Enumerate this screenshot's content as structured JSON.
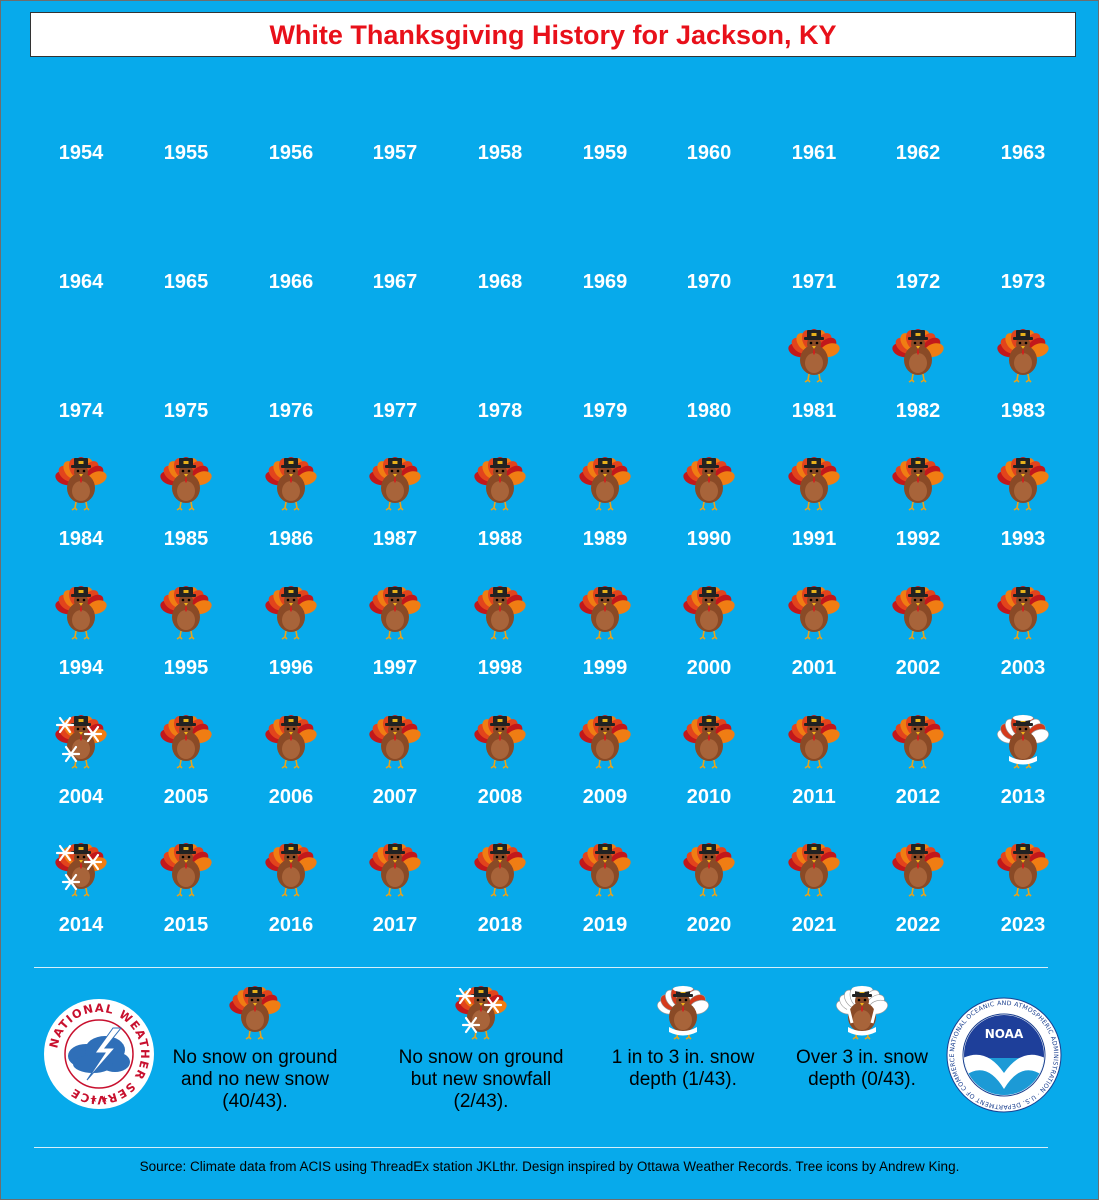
{
  "title": "White Thanksgiving History for Jackson, KY",
  "years": [
    [
      "1954",
      "1955",
      "1956",
      "1957",
      "1958",
      "1959",
      "1960",
      "1961",
      "1962",
      "1963"
    ],
    [
      "1964",
      "1965",
      "1966",
      "1967",
      "1968",
      "1969",
      "1970",
      "1971",
      "1972",
      "1973"
    ],
    [
      "1974",
      "1975",
      "1976",
      "1977",
      "1978",
      "1979",
      "1980",
      "1981",
      "1982",
      "1983"
    ],
    [
      "1984",
      "1985",
      "1986",
      "1987",
      "1988",
      "1989",
      "1990",
      "1991",
      "1992",
      "1993"
    ],
    [
      "1994",
      "1995",
      "1996",
      "1997",
      "1998",
      "1999",
      "2000",
      "2001",
      "2002",
      "2003"
    ],
    [
      "2004",
      "2005",
      "2006",
      "2007",
      "2008",
      "2009",
      "2010",
      "2011",
      "2012",
      "2013"
    ],
    [
      "2014",
      "2015",
      "2016",
      "2017",
      "2018",
      "2019",
      "2020",
      "2021",
      "2022",
      "2023"
    ]
  ],
  "status": {
    "1981": "none",
    "1982": "none",
    "1983": "none",
    "1984": "none",
    "1985": "none",
    "1986": "none",
    "1987": "none",
    "1988": "none",
    "1989": "none",
    "1990": "none",
    "1991": "none",
    "1992": "none",
    "1993": "none",
    "1994": "none",
    "1995": "none",
    "1996": "none",
    "1997": "none",
    "1998": "none",
    "1999": "none",
    "2000": "none",
    "2001": "none",
    "2002": "none",
    "2003": "none",
    "2004": "snowfall",
    "2005": "none",
    "2006": "none",
    "2007": "none",
    "2008": "none",
    "2009": "none",
    "2010": "none",
    "2011": "none",
    "2012": "none",
    "2013": "depth1to3",
    "2014": "snowfall",
    "2015": "none",
    "2016": "none",
    "2017": "none",
    "2018": "none",
    "2019": "none",
    "2020": "none",
    "2021": "none",
    "2022": "none",
    "2023": "none"
  },
  "legend": [
    {
      "icon": "turkey-plain-icon",
      "text": "No snow on ground and no new snow (40/43)."
    },
    {
      "icon": "turkey-snowflakes-icon",
      "text": "No snow on ground but new snowfall (2/43)."
    },
    {
      "icon": "turkey-light-snow-icon",
      "text": "1 in to 3 in. snow depth (1/43)."
    },
    {
      "icon": "turkey-heavy-snow-icon",
      "text": "Over 3 in. snow depth (0/43)."
    }
  ],
  "logos": {
    "nws_text": "NATIONAL WEATHER SERVICE",
    "noaa_label": "NOAA",
    "noaa_ring_text": "NATIONAL OCEANIC AND ATMOSPHERIC ADMINISTRATION · U.S. DEPARTMENT OF COMMERCE"
  },
  "source": "Source: Climate data from ACIS using ThreadEx station JKLthr. Design inspired by Ottawa Weather Records. Tree icons by Andrew King.",
  "colors": {
    "background": "#07aaeb",
    "title": "#e8101a"
  }
}
